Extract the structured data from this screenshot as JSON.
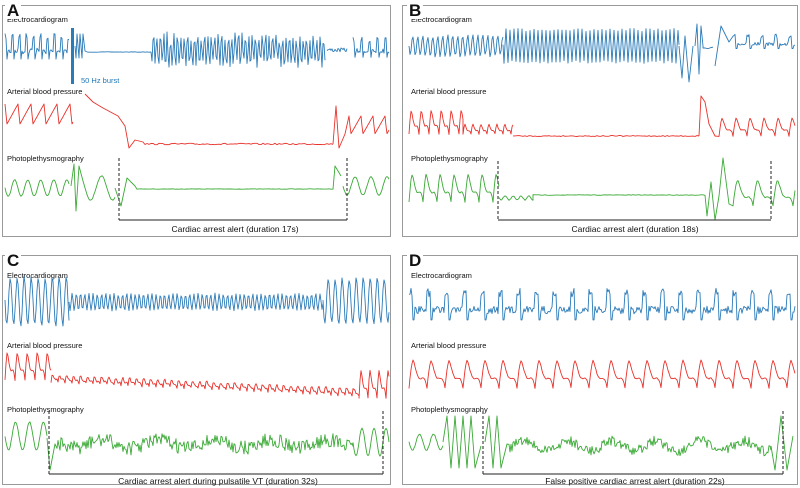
{
  "colors": {
    "ecg": "#2b7bb9",
    "abp": "#e8322b",
    "ppg": "#3aaa35"
  },
  "panels": [
    {
      "letter": "A",
      "labels": {
        "ecg": "Electrocardiogram",
        "abp": "Arterial blood pressure",
        "ppg": "Photoplethysmography"
      },
      "annotation": "50 Hz burst",
      "caption": "Cardiac arrest alert (duration 17s)"
    },
    {
      "letter": "B",
      "labels": {
        "ecg": "Electrocardiogram",
        "abp": "Arterial blood pressure",
        "ppg": "Photoplethysmography"
      },
      "caption": "Cardiac arrest alert (duration 18s)"
    },
    {
      "letter": "C",
      "labels": {
        "ecg": "Electrocardiogram",
        "abp": "Arterial blood pressure",
        "ppg": "Photoplethysmography"
      },
      "caption": "Cardiac arrest alert during pulsatile VT (duration 32s)"
    },
    {
      "letter": "D",
      "labels": {
        "ecg": "Electrocardiogram",
        "abp": "Arterial blood pressure",
        "ppg": "Photoplethysmography"
      },
      "caption": "False positive cardiac arrest alert (duration 22s)"
    }
  ]
}
